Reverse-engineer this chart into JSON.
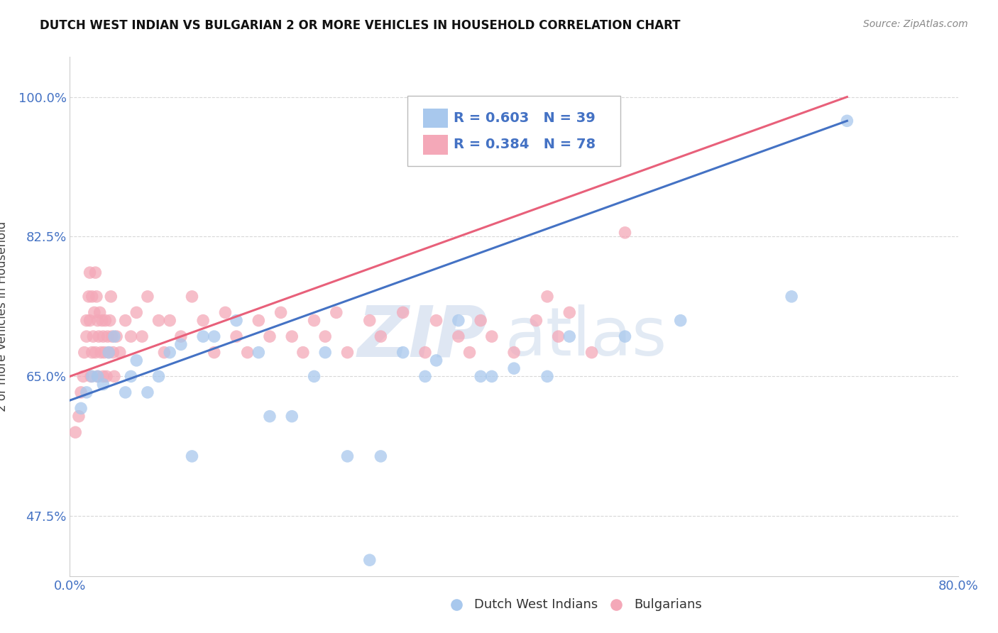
{
  "title": "DUTCH WEST INDIAN VS BULGARIAN 2 OR MORE VEHICLES IN HOUSEHOLD CORRELATION CHART",
  "source": "Source: ZipAtlas.com",
  "ylabel": "2 or more Vehicles in Household",
  "xlim": [
    0.0,
    80.0
  ],
  "ylim": [
    40.0,
    105.0
  ],
  "yticks": [
    47.5,
    65.0,
    82.5,
    100.0
  ],
  "ytick_labels": [
    "47.5%",
    "65.0%",
    "82.5%",
    "100.0%"
  ],
  "blue_R": 0.603,
  "blue_N": 39,
  "pink_R": 0.384,
  "pink_N": 78,
  "blue_color": "#a8c8ed",
  "pink_color": "#f4a8b8",
  "blue_line_color": "#4472c4",
  "pink_line_color": "#e8607a",
  "legend_label_blue": "Dutch West Indians",
  "legend_label_pink": "Bulgarians",
  "watermark_zip": "ZIP",
  "watermark_atlas": "atlas",
  "background_color": "#ffffff",
  "grid_color": "#d8d8d8",
  "blue_x": [
    1.0,
    1.5,
    2.0,
    2.5,
    3.0,
    3.5,
    4.0,
    5.0,
    5.5,
    6.0,
    7.0,
    8.0,
    9.0,
    10.0,
    11.0,
    12.0,
    13.0,
    15.0,
    17.0,
    18.0,
    20.0,
    22.0,
    23.0,
    25.0,
    27.0,
    28.0,
    30.0,
    32.0,
    33.0,
    35.0,
    37.0,
    38.0,
    40.0,
    43.0,
    45.0,
    50.0,
    55.0,
    65.0,
    70.0
  ],
  "blue_y": [
    61.0,
    63.0,
    65.0,
    65.0,
    64.0,
    68.0,
    70.0,
    63.0,
    65.0,
    67.0,
    63.0,
    65.0,
    68.0,
    69.0,
    55.0,
    70.0,
    70.0,
    72.0,
    68.0,
    60.0,
    60.0,
    65.0,
    68.0,
    55.0,
    42.0,
    55.0,
    68.0,
    65.0,
    67.0,
    72.0,
    65.0,
    65.0,
    66.0,
    65.0,
    70.0,
    70.0,
    72.0,
    75.0,
    97.0
  ],
  "pink_x": [
    0.5,
    0.8,
    1.0,
    1.2,
    1.3,
    1.5,
    1.5,
    1.7,
    1.8,
    1.8,
    1.9,
    2.0,
    2.0,
    2.1,
    2.2,
    2.3,
    2.3,
    2.4,
    2.5,
    2.5,
    2.6,
    2.7,
    2.8,
    2.9,
    3.0,
    3.0,
    3.1,
    3.2,
    3.3,
    3.4,
    3.5,
    3.6,
    3.7,
    3.8,
    3.9,
    4.0,
    4.2,
    4.5,
    5.0,
    5.5,
    6.0,
    6.5,
    7.0,
    8.0,
    8.5,
    9.0,
    10.0,
    11.0,
    12.0,
    13.0,
    14.0,
    15.0,
    16.0,
    17.0,
    18.0,
    19.0,
    20.0,
    21.0,
    22.0,
    23.0,
    24.0,
    25.0,
    27.0,
    28.0,
    30.0,
    32.0,
    33.0,
    35.0,
    36.0,
    37.0,
    38.0,
    40.0,
    42.0,
    43.0,
    44.0,
    45.0,
    47.0,
    50.0
  ],
  "pink_y": [
    58.0,
    60.0,
    63.0,
    65.0,
    68.0,
    70.0,
    72.0,
    75.0,
    72.0,
    78.0,
    65.0,
    68.0,
    75.0,
    70.0,
    73.0,
    78.0,
    68.0,
    75.0,
    65.0,
    72.0,
    70.0,
    73.0,
    68.0,
    72.0,
    65.0,
    70.0,
    68.0,
    72.0,
    65.0,
    70.0,
    68.0,
    72.0,
    75.0,
    70.0,
    68.0,
    65.0,
    70.0,
    68.0,
    72.0,
    70.0,
    73.0,
    70.0,
    75.0,
    72.0,
    68.0,
    72.0,
    70.0,
    75.0,
    72.0,
    68.0,
    73.0,
    70.0,
    68.0,
    72.0,
    70.0,
    73.0,
    70.0,
    68.0,
    72.0,
    70.0,
    73.0,
    68.0,
    72.0,
    70.0,
    73.0,
    68.0,
    72.0,
    70.0,
    68.0,
    72.0,
    70.0,
    68.0,
    72.0,
    75.0,
    70.0,
    73.0,
    68.0,
    83.0
  ],
  "blue_line_x0": 0.0,
  "blue_line_y0": 62.0,
  "blue_line_x1": 70.0,
  "blue_line_y1": 97.0,
  "pink_line_x0": 0.0,
  "pink_line_y0": 65.0,
  "pink_line_x1": 70.0,
  "pink_line_y1": 100.0
}
